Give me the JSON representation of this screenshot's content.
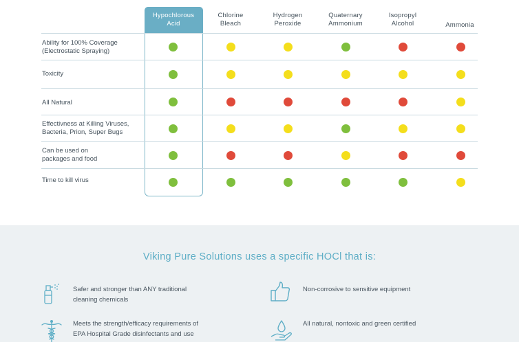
{
  "table": {
    "columns": [
      {
        "label_line1": "Hypochlorous",
        "label_line2": "Acid",
        "highlighted": true
      },
      {
        "label_line1": "Chlorine",
        "label_line2": "Bleach",
        "highlighted": false
      },
      {
        "label_line1": "Hydrogen",
        "label_line2": "Peroxide",
        "highlighted": false
      },
      {
        "label_line1": "Quaternary",
        "label_line2": "Ammonium",
        "highlighted": false
      },
      {
        "label_line1": "Isopropyl",
        "label_line2": "Alcohol",
        "highlighted": false
      },
      {
        "label_line1": "",
        "label_line2": "Ammonia",
        "highlighted": false
      }
    ],
    "rows": [
      {
        "label_line1": "Ability for 100% Coverage",
        "label_line2": "(Electrostatic Spraying)",
        "ratings": [
          "green",
          "yellow",
          "yellow",
          "green",
          "red",
          "red"
        ]
      },
      {
        "label_line1": "Toxicity",
        "label_line2": "",
        "ratings": [
          "green",
          "yellow",
          "yellow",
          "yellow",
          "yellow",
          "yellow"
        ]
      },
      {
        "label_line1": "All Natural",
        "label_line2": "",
        "ratings": [
          "green",
          "red",
          "red",
          "red",
          "red",
          "yellow"
        ]
      },
      {
        "label_line1": "Effectivness at Killing Viruses,",
        "label_line2": "Bacteria, Prion, Super Bugs",
        "ratings": [
          "green",
          "yellow",
          "yellow",
          "green",
          "yellow",
          "yellow"
        ]
      },
      {
        "label_line1": "Can be used on",
        "label_line2": "packages and food",
        "ratings": [
          "green",
          "red",
          "red",
          "yellow",
          "red",
          "red"
        ]
      },
      {
        "label_line1": "Time to kill virus",
        "label_line2": "",
        "ratings": [
          "green",
          "green",
          "green",
          "green",
          "green",
          "yellow"
        ]
      }
    ],
    "colors": {
      "green": "#7fbf3d",
      "yellow": "#f4de1c",
      "red": "#e04a3a",
      "accent": "#6aaec5"
    }
  },
  "benefits": {
    "title": "Viking Pure Solutions uses a specific HOCl that is:",
    "items": [
      {
        "icon": "spray-bottle-icon",
        "line1": "Safer and stronger than ANY traditional",
        "line2": "cleaning chemicals"
      },
      {
        "icon": "thumbs-up-icon",
        "line1": "Non-corrosive to sensitive equipment",
        "line2": ""
      },
      {
        "icon": "caduceus-icon",
        "line1": "Meets the strength/efficacy requirements of",
        "line2": "EPA Hospital Grade disinfectants and use"
      },
      {
        "icon": "water-drop-hand-icon",
        "line1": "All natural, nontoxic and green certified",
        "line2": ""
      }
    ]
  }
}
